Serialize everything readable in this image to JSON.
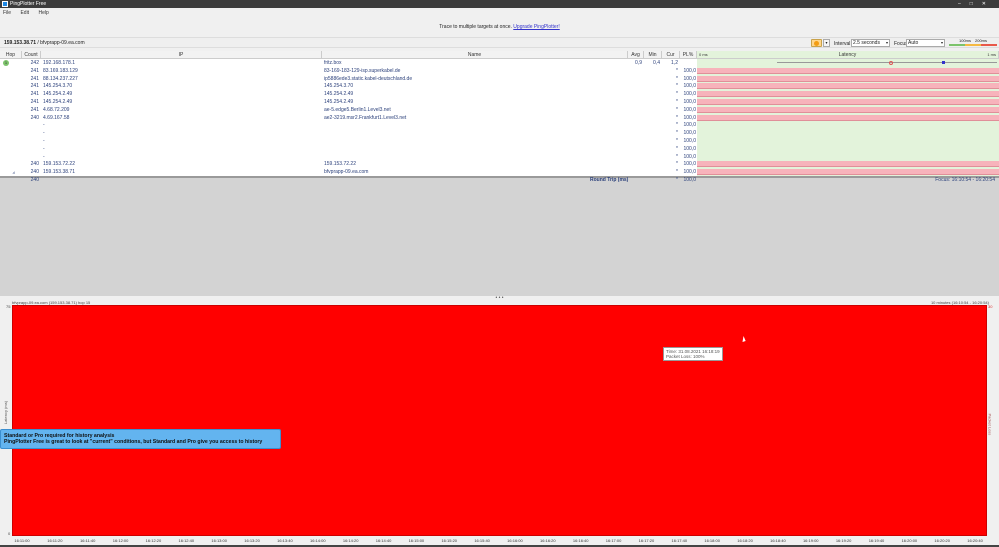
{
  "window": {
    "title": "PingPlotter Free"
  },
  "menu": [
    "File",
    "Edit",
    "Help"
  ],
  "banner": {
    "text": "Trace to multiple targets at once.",
    "link": "Upgrade PingPlotter!"
  },
  "target": {
    "ip": "159.153.38.71",
    "host": " / bfvprapp-09.ea.com"
  },
  "controls": {
    "interval_label": "Interval",
    "interval_value": "2.5 seconds",
    "focus_label": "Focus",
    "focus_value": "Auto",
    "scale_100": "100ms",
    "scale_200": "200ms",
    "pause_color": "#f39c12"
  },
  "table": {
    "headers": {
      "hop": "Hop",
      "count": "Count",
      "ip": "IP",
      "name": "Name",
      "avg": "Avg",
      "min": "Min",
      "cur": "Cur",
      "pl": "PL%",
      "latency": "Latency",
      "lat_min": "0 ms",
      "lat_max": "1 ms"
    },
    "rows": [
      {
        "hop": "1",
        "count": "242",
        "ip": "192.168.178.1",
        "name": "fritz.box",
        "avg": "0,9",
        "min": "0,4",
        "cur": "1,2",
        "pl": "",
        "loss": false
      },
      {
        "hop": "",
        "count": "241",
        "ip": "83.169.183.129",
        "name": "83-169-183-129-isp.superkabel.de",
        "avg": "",
        "min": "",
        "cur": "*",
        "pl": "100,0",
        "loss": true
      },
      {
        "hop": "",
        "count": "241",
        "ip": "88.134.237.227",
        "name": "ip5886ede3.static.kabel-deutschland.de",
        "avg": "",
        "min": "",
        "cur": "*",
        "pl": "100,0",
        "loss": true
      },
      {
        "hop": "",
        "count": "241",
        "ip": "145.254.3.70",
        "name": "145.254.3.70",
        "avg": "",
        "min": "",
        "cur": "*",
        "pl": "100,0",
        "loss": true
      },
      {
        "hop": "",
        "count": "241",
        "ip": "145.254.2.49",
        "name": "145.254.2.49",
        "avg": "",
        "min": "",
        "cur": "*",
        "pl": "100,0",
        "loss": true
      },
      {
        "hop": "",
        "count": "241",
        "ip": "145.254.2.49",
        "name": "145.254.2.49",
        "avg": "",
        "min": "",
        "cur": "*",
        "pl": "100,0",
        "loss": true
      },
      {
        "hop": "",
        "count": "241",
        "ip": "4.68.72.209",
        "name": "ae-5.edge5.Berlin1.Level3.net",
        "avg": "",
        "min": "",
        "cur": "*",
        "pl": "100,0",
        "loss": true
      },
      {
        "hop": "",
        "count": "240",
        "ip": "4.69.167.58",
        "name": "ae2-3219.msr2.Frankfurt1.Level3.net",
        "avg": "",
        "min": "",
        "cur": "*",
        "pl": "100,0",
        "loss": true
      },
      {
        "hop": "",
        "count": "",
        "ip": "-",
        "name": "",
        "avg": "",
        "min": "",
        "cur": "*",
        "pl": "100,0",
        "loss": false
      },
      {
        "hop": "",
        "count": "",
        "ip": "-",
        "name": "",
        "avg": "",
        "min": "",
        "cur": "*",
        "pl": "100,0",
        "loss": false
      },
      {
        "hop": "",
        "count": "",
        "ip": "-",
        "name": "",
        "avg": "",
        "min": "",
        "cur": "*",
        "pl": "100,0",
        "loss": false
      },
      {
        "hop": "",
        "count": "",
        "ip": "-",
        "name": "",
        "avg": "",
        "min": "",
        "cur": "*",
        "pl": "100,0",
        "loss": false
      },
      {
        "hop": "",
        "count": "",
        "ip": "-",
        "name": "",
        "avg": "",
        "min": "",
        "cur": "*",
        "pl": "100,0",
        "loss": false
      },
      {
        "hop": "",
        "count": "240",
        "ip": "159.153.72.22",
        "name": "159.153.72.22",
        "avg": "",
        "min": "",
        "cur": "*",
        "pl": "100,0",
        "loss": true
      },
      {
        "hop": "signal-icon",
        "count": "240",
        "ip": "159.153.38.71",
        "name": "bfvprapp-09.ea.com",
        "avg": "",
        "min": "",
        "cur": "*",
        "pl": "100,0",
        "loss": true
      }
    ],
    "round_trip": {
      "count": "240",
      "label": "Round Trip (ms)",
      "cur": "*",
      "pl": "100,0",
      "focus": "Focus: 16:10:54 - 16:20:54"
    }
  },
  "graph": {
    "title": "bfvprapp-09.ea.com (159.153.38.71) hop 15",
    "range": "10 minutes (16:10:54 - 16:20:54)",
    "y_top": "75",
    "y_bottom": "0",
    "y_label": "Latency (ms)",
    "right_top": "30",
    "right_label": "Packet Loss %",
    "x_ticks": [
      "16:11:00",
      "16:11:20",
      "16:11:40",
      "16:12:00",
      "16:12:20",
      "16:12:40",
      "16:13:00",
      "16:13:20",
      "16:13:40",
      "16:14:00",
      "16:14:20",
      "16:14:40",
      "16:15:00",
      "16:15:20",
      "16:15:40",
      "16:16:00",
      "16:16:20",
      "16:16:40",
      "16:17:00",
      "16:17:20",
      "16:17:40",
      "16:18:00",
      "16:18:20",
      "16:18:40",
      "16:19:00",
      "16:19:20",
      "16:19:40",
      "16:20:00",
      "16:20:20",
      "16:20:40"
    ],
    "tooltip": {
      "time": "Time: 31.08.2021 16:18:19",
      "loss": "Packet Loss: 100%"
    },
    "loss_color": "#ff0000"
  },
  "promo": {
    "title": "Standard or Pro required for history analysis",
    "body": "PingPlotter Free is great to look at \"current\" conditions, but Standard and Pro give you access to history"
  }
}
